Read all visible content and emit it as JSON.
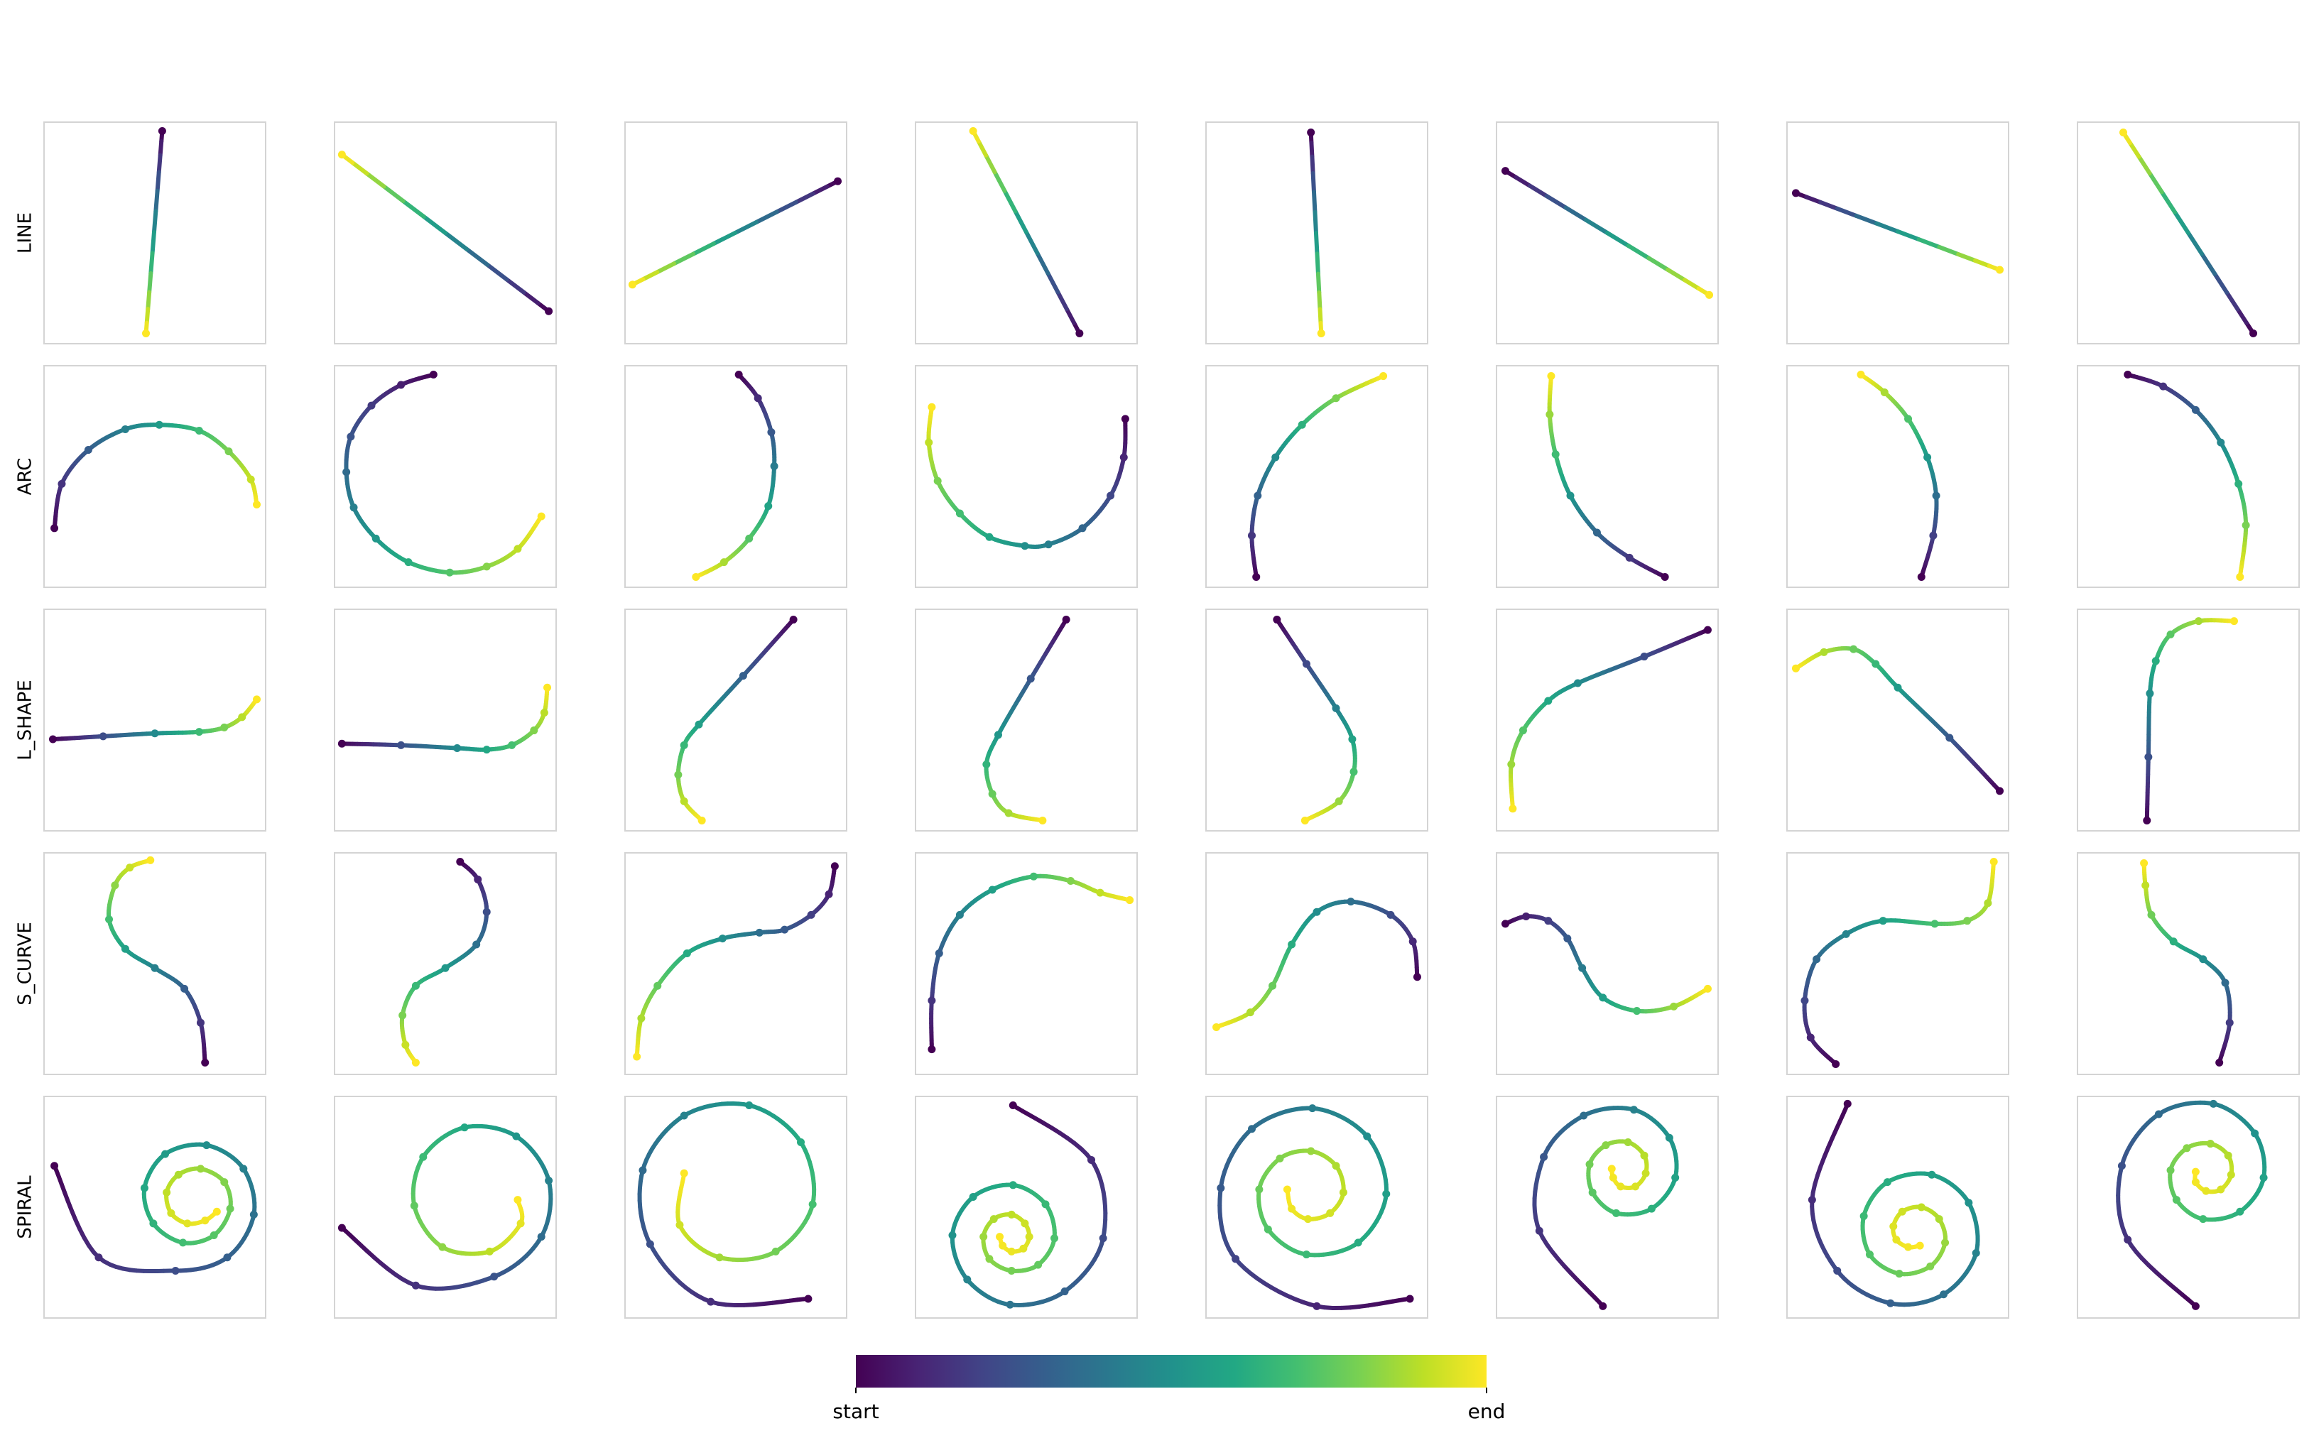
{
  "chart_data": [
    {
      "type": "line",
      "ylabel": "LINE",
      "colormap": "viridis",
      "xlim": [
        0,
        150
      ],
      "ylim": [
        150,
        0
      ],
      "x": [
        80,
        69
      ],
      "values": [
        6,
        143
      ]
    },
    {
      "type": "line",
      "colormap": "viridis",
      "xlim": [
        0,
        150
      ],
      "ylim": [
        150,
        0
      ],
      "x": [
        145,
        5
      ],
      "values": [
        128,
        22
      ]
    },
    {
      "type": "line",
      "colormap": "viridis",
      "xlim": [
        0,
        150
      ],
      "ylim": [
        150,
        0
      ],
      "x": [
        144,
        5
      ],
      "values": [
        40,
        110
      ]
    },
    {
      "type": "line",
      "colormap": "viridis",
      "xlim": [
        0,
        150
      ],
      "ylim": [
        150,
        0
      ],
      "x": [
        111,
        39
      ],
      "values": [
        143,
        6
      ]
    },
    {
      "type": "line",
      "colormap": "viridis",
      "xlim": [
        0,
        150
      ],
      "ylim": [
        150,
        0
      ],
      "x": [
        71,
        78
      ],
      "values": [
        7,
        143
      ]
    },
    {
      "type": "line",
      "colormap": "viridis",
      "xlim": [
        0,
        150
      ],
      "ylim": [
        150,
        0
      ],
      "x": [
        6,
        144
      ],
      "values": [
        33,
        117
      ]
    },
    {
      "type": "line",
      "colormap": "viridis",
      "xlim": [
        0,
        150
      ],
      "ylim": [
        150,
        0
      ],
      "x": [
        6,
        144
      ],
      "values": [
        48,
        100
      ]
    },
    {
      "type": "line",
      "colormap": "viridis",
      "xlim": [
        0,
        150
      ],
      "ylim": [
        150,
        0
      ],
      "x": [
        119,
        31
      ],
      "values": [
        143,
        7
      ]
    },
    {
      "type": "line",
      "ylabel": "ARC",
      "colormap": "viridis",
      "xlim": [
        0,
        150
      ],
      "ylim": [
        150,
        0
      ],
      "x": [
        7,
        12,
        30,
        55,
        78,
        105,
        125,
        140,
        144
      ],
      "values": [
        110,
        80,
        57,
        43,
        40,
        44,
        58,
        77,
        94
      ]
    },
    {
      "type": "line",
      "colormap": "viridis",
      "xlim": [
        0,
        150
      ],
      "ylim": [
        150,
        0
      ],
      "x": [
        67,
        45,
        25,
        11,
        8,
        13,
        28,
        50,
        78,
        103,
        124,
        140
      ],
      "values": [
        6,
        13,
        27,
        48,
        72,
        96,
        117,
        133,
        140,
        136,
        124,
        102
      ]
    },
    {
      "type": "line",
      "colormap": "viridis",
      "xlim": [
        0,
        150
      ],
      "ylim": [
        150,
        0
      ],
      "x": [
        77,
        90,
        99,
        101,
        97,
        84,
        67,
        48
      ],
      "values": [
        6,
        22,
        45,
        68,
        95,
        117,
        133,
        143
      ]
    },
    {
      "type": "line",
      "colormap": "viridis",
      "xlim": [
        0,
        150
      ],
      "ylim": [
        150,
        0
      ],
      "x": [
        142,
        141,
        132,
        113,
        90,
        74,
        50,
        30,
        15,
        9,
        11
      ],
      "values": [
        36,
        62,
        88,
        110,
        121,
        122,
        116,
        100,
        78,
        52,
        28
      ]
    },
    {
      "type": "line",
      "colormap": "viridis",
      "xlim": [
        0,
        150
      ],
      "ylim": [
        150,
        0
      ],
      "x": [
        34,
        31,
        35,
        47,
        65,
        88,
        120
      ],
      "values": [
        143,
        115,
        88,
        62,
        40,
        22,
        7
      ]
    },
    {
      "type": "line",
      "colormap": "viridis",
      "xlim": [
        0,
        150
      ],
      "ylim": [
        150,
        0
      ],
      "x": [
        114,
        90,
        68,
        50,
        40,
        36,
        37
      ],
      "values": [
        143,
        130,
        113,
        88,
        60,
        33,
        7
      ]
    },
    {
      "type": "line",
      "colormap": "viridis",
      "xlim": [
        0,
        150
      ],
      "ylim": [
        150,
        0
      ],
      "x": [
        91,
        99,
        101,
        95,
        82,
        66,
        50
      ],
      "values": [
        143,
        115,
        88,
        62,
        36,
        18,
        6
      ]
    },
    {
      "type": "line",
      "colormap": "viridis",
      "xlim": [
        0,
        150
      ],
      "ylim": [
        150,
        0
      ],
      "x": [
        34,
        58,
        80,
        97,
        109,
        114,
        110
      ],
      "values": [
        6,
        14,
        30,
        52,
        80,
        108,
        143
      ]
    },
    {
      "type": "line",
      "ylabel": "L_SHAPE",
      "colormap": "viridis",
      "xlim": [
        0,
        150
      ],
      "ylim": [
        150,
        0
      ],
      "x": [
        6,
        40,
        75,
        105,
        122,
        134,
        144
      ],
      "values": [
        88,
        86,
        84,
        83,
        80,
        73,
        61
      ]
    },
    {
      "type": "line",
      "colormap": "viridis",
      "xlim": [
        0,
        150
      ],
      "ylim": [
        150,
        0
      ],
      "x": [
        5,
        45,
        83,
        103,
        120,
        135,
        142,
        144
      ],
      "values": [
        91,
        92,
        94,
        95,
        92,
        82,
        70,
        53
      ]
    },
    {
      "type": "line",
      "colormap": "viridis",
      "xlim": [
        0,
        150
      ],
      "ylim": [
        150,
        0
      ],
      "x": [
        114,
        80,
        50,
        40,
        36,
        40,
        52
      ],
      "values": [
        7,
        45,
        78,
        92,
        112,
        130,
        143
      ]
    },
    {
      "type": "line",
      "colormap": "viridis",
      "xlim": [
        0,
        150
      ],
      "ylim": [
        150,
        0
      ],
      "x": [
        102,
        78,
        56,
        48,
        52,
        63,
        86
      ],
      "values": [
        7,
        47,
        85,
        105,
        125,
        138,
        143
      ]
    },
    {
      "type": "line",
      "colormap": "viridis",
      "xlim": [
        0,
        150
      ],
      "ylim": [
        150,
        0
      ],
      "x": [
        48,
        68,
        88,
        99,
        100,
        90,
        67
      ],
      "values": [
        7,
        37,
        67,
        88,
        110,
        130,
        143
      ]
    },
    {
      "type": "line",
      "colormap": "viridis",
      "xlim": [
        0,
        150
      ],
      "ylim": [
        150,
        0
      ],
      "x": [
        143,
        100,
        55,
        35,
        18,
        10,
        11
      ],
      "values": [
        14,
        32,
        50,
        62,
        82,
        105,
        135
      ]
    },
    {
      "type": "line",
      "colormap": "viridis",
      "xlim": [
        0,
        150
      ],
      "ylim": [
        150,
        0
      ],
      "x": [
        144,
        110,
        75,
        60,
        45,
        25,
        6
      ],
      "values": [
        123,
        87,
        53,
        37,
        27,
        29,
        40
      ]
    },
    {
      "type": "line",
      "colormap": "viridis",
      "xlim": [
        0,
        150
      ],
      "ylim": [
        150,
        0
      ],
      "x": [
        47,
        48,
        49,
        53,
        63,
        82,
        106
      ],
      "values": [
        143,
        100,
        57,
        35,
        17,
        8,
        8
      ]
    },
    {
      "type": "line",
      "ylabel": "S_CURVE",
      "colormap": "viridis",
      "xlim": [
        0,
        150
      ],
      "ylim": [
        150,
        0
      ],
      "x": [
        109,
        106,
        95,
        75,
        55,
        44,
        48,
        58,
        72
      ],
      "values": [
        142,
        115,
        92,
        78,
        65,
        45,
        22,
        10,
        5
      ]
    },
    {
      "type": "line",
      "colormap": "viridis",
      "xlim": [
        0,
        150
      ],
      "ylim": [
        150,
        0
      ],
      "x": [
        85,
        97,
        103,
        96,
        75,
        55,
        46,
        48,
        55
      ],
      "values": [
        6,
        18,
        40,
        62,
        78,
        90,
        110,
        130,
        142
      ]
    },
    {
      "type": "line",
      "colormap": "viridis",
      "xlim": [
        0,
        150
      ],
      "ylim": [
        150,
        0
      ],
      "x": [
        142,
        138,
        126,
        108,
        91,
        66,
        42,
        22,
        11,
        8
      ],
      "values": [
        9,
        28,
        42,
        52,
        54,
        58,
        68,
        90,
        112,
        138
      ]
    },
    {
      "type": "line",
      "colormap": "viridis",
      "xlim": [
        0,
        150
      ],
      "ylim": [
        150,
        0
      ],
      "x": [
        11,
        11,
        16,
        30,
        52,
        80,
        105,
        125,
        145
      ],
      "values": [
        133,
        100,
        68,
        42,
        25,
        16,
        19,
        27,
        32
      ]
    },
    {
      "type": "line",
      "colormap": "viridis",
      "xlim": [
        0,
        150
      ],
      "ylim": [
        150,
        0
      ],
      "x": [
        143,
        140,
        125,
        98,
        75,
        58,
        45,
        30,
        7
      ],
      "values": [
        84,
        60,
        42,
        33,
        40,
        62,
        90,
        108,
        118
      ]
    },
    {
      "type": "line",
      "colormap": "viridis",
      "xlim": [
        0,
        150
      ],
      "ylim": [
        150,
        0
      ],
      "x": [
        6,
        20,
        35,
        48,
        58,
        72,
        95,
        120,
        143
      ],
      "values": [
        48,
        43,
        46,
        58,
        78,
        98,
        107,
        104,
        92
      ]
    },
    {
      "type": "line",
      "colormap": "viridis",
      "xlim": [
        0,
        150
      ],
      "ylim": [
        150,
        0
      ],
      "x": [
        33,
        16,
        12,
        20,
        40,
        65,
        100,
        122,
        136,
        140
      ],
      "values": [
        143,
        125,
        100,
        72,
        55,
        46,
        48,
        46,
        34,
        6
      ]
    },
    {
      "type": "line",
      "colormap": "viridis",
      "xlim": [
        0,
        150
      ],
      "ylim": [
        150,
        0
      ],
      "x": [
        96,
        103,
        100,
        85,
        65,
        50,
        46,
        45
      ],
      "values": [
        142,
        115,
        88,
        72,
        60,
        42,
        22,
        7
      ]
    },
    {
      "type": "line",
      "ylabel": "SPIRAL",
      "colormap": "viridis",
      "xlim": [
        0,
        150
      ],
      "ylim": [
        150,
        0
      ],
      "x": [
        7,
        37,
        89,
        124,
        142,
        135,
        110,
        82,
        68,
        74,
        94,
        115,
        126,
        122,
        106,
        91,
        83,
        86,
        97,
        109,
        117
      ],
      "values": [
        47,
        109,
        118,
        109,
        80,
        49,
        33,
        39,
        62,
        86,
        99,
        94,
        76,
        58,
        49,
        53,
        65,
        79,
        86,
        84,
        78
      ]
    },
    {
      "type": "line",
      "colormap": "viridis",
      "xlim": [
        0,
        150
      ],
      "ylim": [
        150,
        0
      ],
      "x": [
        5,
        55,
        108,
        140,
        145,
        123,
        88,
        60,
        54,
        73,
        105,
        126,
        124
      ],
      "values": [
        89,
        128,
        122,
        95,
        57,
        27,
        21,
        41,
        74,
        102,
        105,
        86,
        70
      ]
    },
    {
      "type": "line",
      "colormap": "viridis",
      "xlim": [
        0,
        150
      ],
      "ylim": [
        150,
        0
      ],
      "x": [
        124,
        58,
        17,
        12,
        40,
        84,
        119,
        127,
        102,
        64,
        37,
        40
      ],
      "values": [
        137,
        139,
        100,
        50,
        13,
        6,
        31,
        73,
        105,
        109,
        87,
        52
      ]
    },
    {
      "type": "line",
      "colormap": "viridis",
      "xlim": [
        0,
        150
      ],
      "ylim": [
        150,
        0
      ],
      "x": [
        66,
        119,
        127,
        101,
        64,
        35,
        25,
        39,
        66,
        88,
        94,
        83,
        65,
        50,
        46,
        53,
        65,
        74,
        77,
        73,
        65,
        59,
        57
      ],
      "values": [
        6,
        43,
        96,
        132,
        141,
        124,
        94,
        68,
        60,
        73,
        96,
        114,
        118,
        110,
        95,
        83,
        80,
        86,
        95,
        103,
        105,
        101,
        95
      ]
    },
    {
      "type": "line",
      "colormap": "viridis",
      "xlim": [
        0,
        150
      ],
      "ylim": [
        150,
        0
      ],
      "x": [
        138,
        75,
        20,
        10,
        31,
        72,
        109,
        122,
        103,
        68,
        42,
        36,
        50,
        71,
        88,
        93,
        84,
        69,
        58,
        55
      ],
      "values": [
        137,
        142,
        110,
        62,
        22,
        8,
        27,
        66,
        99,
        107,
        90,
        63,
        42,
        37,
        47,
        65,
        79,
        83,
        76,
        63
      ]
    },
    {
      "type": "line",
      "colormap": "viridis",
      "xlim": [
        0,
        150
      ],
      "ylim": [
        150,
        0
      ],
      "x": [
        72,
        29,
        32,
        59,
        93,
        117,
        121,
        105,
        81,
        65,
        63,
        74,
        89,
        100,
        101,
        94,
        84,
        79,
        78
      ],
      "values": [
        142,
        91,
        41,
        13,
        9,
        28,
        55,
        76,
        79,
        65,
        46,
        33,
        31,
        40,
        52,
        61,
        61,
        55,
        49
      ]
    },
    {
      "type": "line",
      "colormap": "viridis",
      "xlim": [
        0,
        150
      ],
      "ylim": [
        150,
        0
      ],
      "x": [
        41,
        17,
        34,
        70,
        106,
        128,
        123,
        98,
        68,
        52,
        56,
        76,
        97,
        107,
        103,
        91,
        78,
        72,
        74,
        82,
        90
      ],
      "values": [
        5,
        70,
        118,
        140,
        134,
        106,
        72,
        53,
        58,
        81,
        107,
        120,
        115,
        99,
        83,
        75,
        78,
        88,
        97,
        102,
        101
      ]
    },
    {
      "type": "line",
      "colormap": "viridis",
      "xlim": [
        0,
        150
      ],
      "ylim": [
        150,
        0
      ],
      "x": [
        80,
        34,
        30,
        55,
        92,
        120,
        126,
        110,
        85,
        67,
        63,
        74,
        90,
        102,
        104,
        97,
        87,
        80,
        80
      ],
      "values": [
        142,
        97,
        47,
        12,
        5,
        25,
        55,
        78,
        83,
        70,
        50,
        35,
        32,
        40,
        53,
        63,
        64,
        58,
        51
      ]
    },
    {
      "type": "colorbar",
      "colormap": "viridis",
      "lim": [
        0,
        1
      ],
      "ticks": [
        {
          "value": 0,
          "label": "start"
        },
        {
          "value": 1,
          "label": "end"
        }
      ]
    }
  ]
}
